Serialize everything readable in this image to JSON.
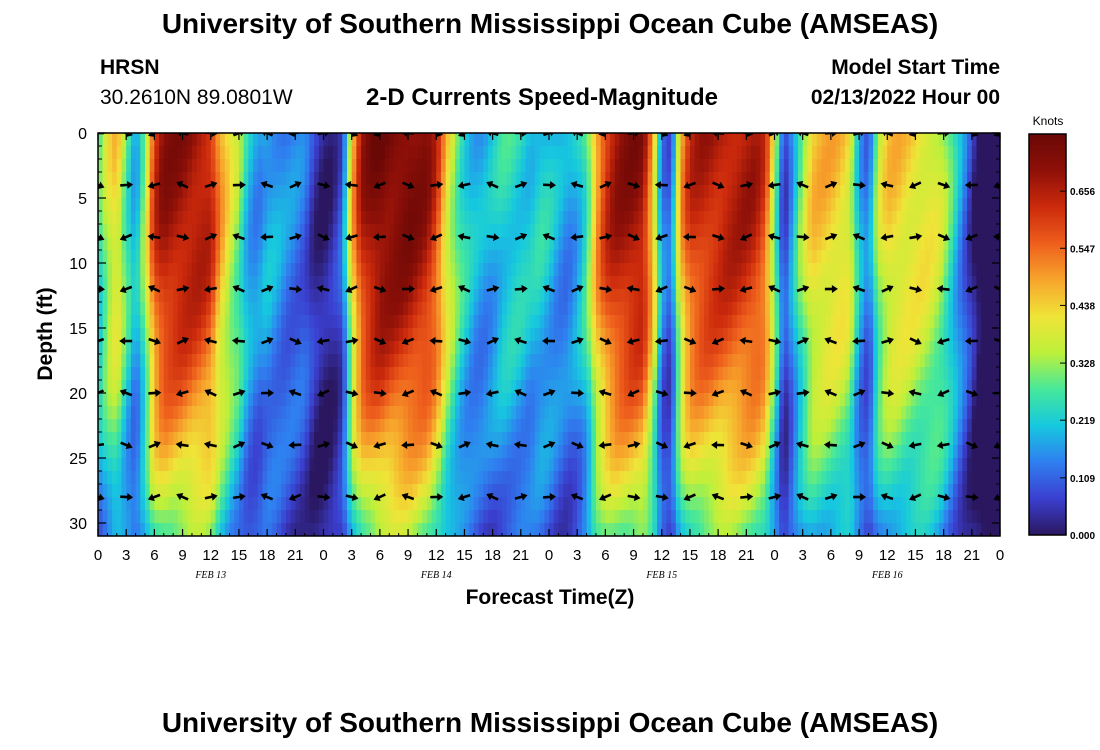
{
  "header": {
    "title": "University of Southern Mississippi Ocean Cube (AMSEAS)",
    "station": "HRSN",
    "coords": "30.2610N  89.0801W",
    "subtitle": "2-D Currents Speed-Magnitude",
    "start_label": "Model Start Time",
    "start_value": "02/13/2022 Hour 00"
  },
  "footer": {
    "title": "University of Southern Mississippi Ocean Cube (AMSEAS)"
  },
  "chart_data": {
    "type": "heatmap",
    "title": "2-D Currents Speed-Magnitude",
    "xlabel": "Forecast Time(Z)",
    "ylabel": "Depth (ft)",
    "x_range_hours": [
      0,
      96
    ],
    "x_ticks": [
      {
        "h": 0,
        "label": "0"
      },
      {
        "h": 3,
        "label": "3"
      },
      {
        "h": 6,
        "label": "6"
      },
      {
        "h": 9,
        "label": "9"
      },
      {
        "h": 12,
        "label": "12"
      },
      {
        "h": 15,
        "label": "15"
      },
      {
        "h": 18,
        "label": "18"
      },
      {
        "h": 21,
        "label": "21"
      },
      {
        "h": 24,
        "label": "0"
      },
      {
        "h": 27,
        "label": "3"
      },
      {
        "h": 30,
        "label": "6"
      },
      {
        "h": 33,
        "label": "9"
      },
      {
        "h": 36,
        "label": "12"
      },
      {
        "h": 39,
        "label": "15"
      },
      {
        "h": 42,
        "label": "18"
      },
      {
        "h": 45,
        "label": "21"
      },
      {
        "h": 48,
        "label": "0"
      },
      {
        "h": 51,
        "label": "3"
      },
      {
        "h": 54,
        "label": "6"
      },
      {
        "h": 57,
        "label": "9"
      },
      {
        "h": 60,
        "label": "12"
      },
      {
        "h": 63,
        "label": "15"
      },
      {
        "h": 66,
        "label": "18"
      },
      {
        "h": 69,
        "label": "21"
      },
      {
        "h": 72,
        "label": "0"
      },
      {
        "h": 75,
        "label": "3"
      },
      {
        "h": 78,
        "label": "6"
      },
      {
        "h": 81,
        "label": "9"
      },
      {
        "h": 84,
        "label": "12"
      },
      {
        "h": 87,
        "label": "15"
      },
      {
        "h": 90,
        "label": "18"
      },
      {
        "h": 93,
        "label": "21"
      },
      {
        "h": 96,
        "label": "0"
      }
    ],
    "date_labels": [
      {
        "h": 12,
        "label": "FEB 13"
      },
      {
        "h": 36,
        "label": "FEB 14"
      },
      {
        "h": 60,
        "label": "FEB 15"
      },
      {
        "h": 84,
        "label": "FEB 16"
      }
    ],
    "y_range_ft": [
      0,
      31
    ],
    "y_ticks": [
      0,
      5,
      10,
      15,
      20,
      25,
      30
    ],
    "colorbar": {
      "unit": "Knots",
      "range": [
        0,
        0.765
      ],
      "tick_values": [
        0.0,
        0.109,
        0.219,
        0.328,
        0.438,
        0.547,
        0.656
      ],
      "tick_labels": [
        "0.000",
        "0.109",
        "0.219",
        "0.328",
        "0.438",
        "0.547",
        "0.656"
      ],
      "colors": [
        "#2a1760",
        "#3b3fcf",
        "#2f7ff0",
        "#16c8df",
        "#46e89a",
        "#bdf03a",
        "#f0e438",
        "#f7a52c",
        "#ee5e1c",
        "#cc2a0c",
        "#8e1008",
        "#6a0806"
      ]
    },
    "speed_profile": {
      "hours": [
        0,
        1,
        2,
        3,
        4,
        5,
        6,
        7,
        8,
        9,
        10,
        11,
        12,
        13,
        14,
        15,
        16,
        17,
        18,
        19,
        20,
        21,
        22,
        23,
        24,
        25,
        26,
        27,
        28,
        29,
        30,
        31,
        32,
        33,
        34,
        35,
        36,
        37,
        38,
        39,
        40,
        41,
        42,
        43,
        44,
        45,
        46,
        47,
        48,
        49,
        50,
        51,
        52,
        53,
        54,
        55,
        56,
        57,
        58,
        59,
        60,
        61,
        62,
        63,
        64,
        65,
        66,
        67,
        68,
        69,
        70,
        71,
        72,
        73,
        74,
        75,
        76,
        77,
        78,
        79,
        80,
        81,
        82,
        83,
        84,
        85,
        86,
        87,
        88,
        89,
        90,
        91,
        92,
        93,
        94,
        95,
        96
      ],
      "surface_knots": [
        0.25,
        0.38,
        0.45,
        0.3,
        0.18,
        0.35,
        0.62,
        0.7,
        0.7,
        0.7,
        0.69,
        0.68,
        0.65,
        0.5,
        0.4,
        0.32,
        0.2,
        0.16,
        0.2,
        0.18,
        0.15,
        0.14,
        0.12,
        0.05,
        0.02,
        0.04,
        0.1,
        0.45,
        0.66,
        0.72,
        0.75,
        0.74,
        0.74,
        0.74,
        0.72,
        0.7,
        0.62,
        0.45,
        0.33,
        0.25,
        0.2,
        0.18,
        0.2,
        0.24,
        0.25,
        0.24,
        0.22,
        0.24,
        0.22,
        0.18,
        0.16,
        0.2,
        0.28,
        0.5,
        0.62,
        0.68,
        0.7,
        0.71,
        0.7,
        0.5,
        0.15,
        0.1,
        0.48,
        0.62,
        0.65,
        0.66,
        0.66,
        0.67,
        0.67,
        0.67,
        0.66,
        0.6,
        0.35,
        0.06,
        0.2,
        0.35,
        0.45,
        0.46,
        0.46,
        0.45,
        0.42,
        0.2,
        0.12,
        0.35,
        0.44,
        0.45,
        0.44,
        0.43,
        0.42,
        0.4,
        0.35,
        0.25
      ]
    },
    "vectors": {
      "depths_ft": [
        0,
        4,
        8,
        12,
        16,
        20,
        24,
        28
      ],
      "column_hours": [
        0,
        3,
        6,
        9,
        12,
        15,
        18,
        21,
        24,
        27,
        30,
        33,
        36,
        39,
        42,
        45,
        48,
        51,
        54,
        57,
        60,
        63,
        66,
        69,
        72,
        75,
        78,
        81,
        84,
        87,
        90,
        93,
        96
      ]
    }
  }
}
